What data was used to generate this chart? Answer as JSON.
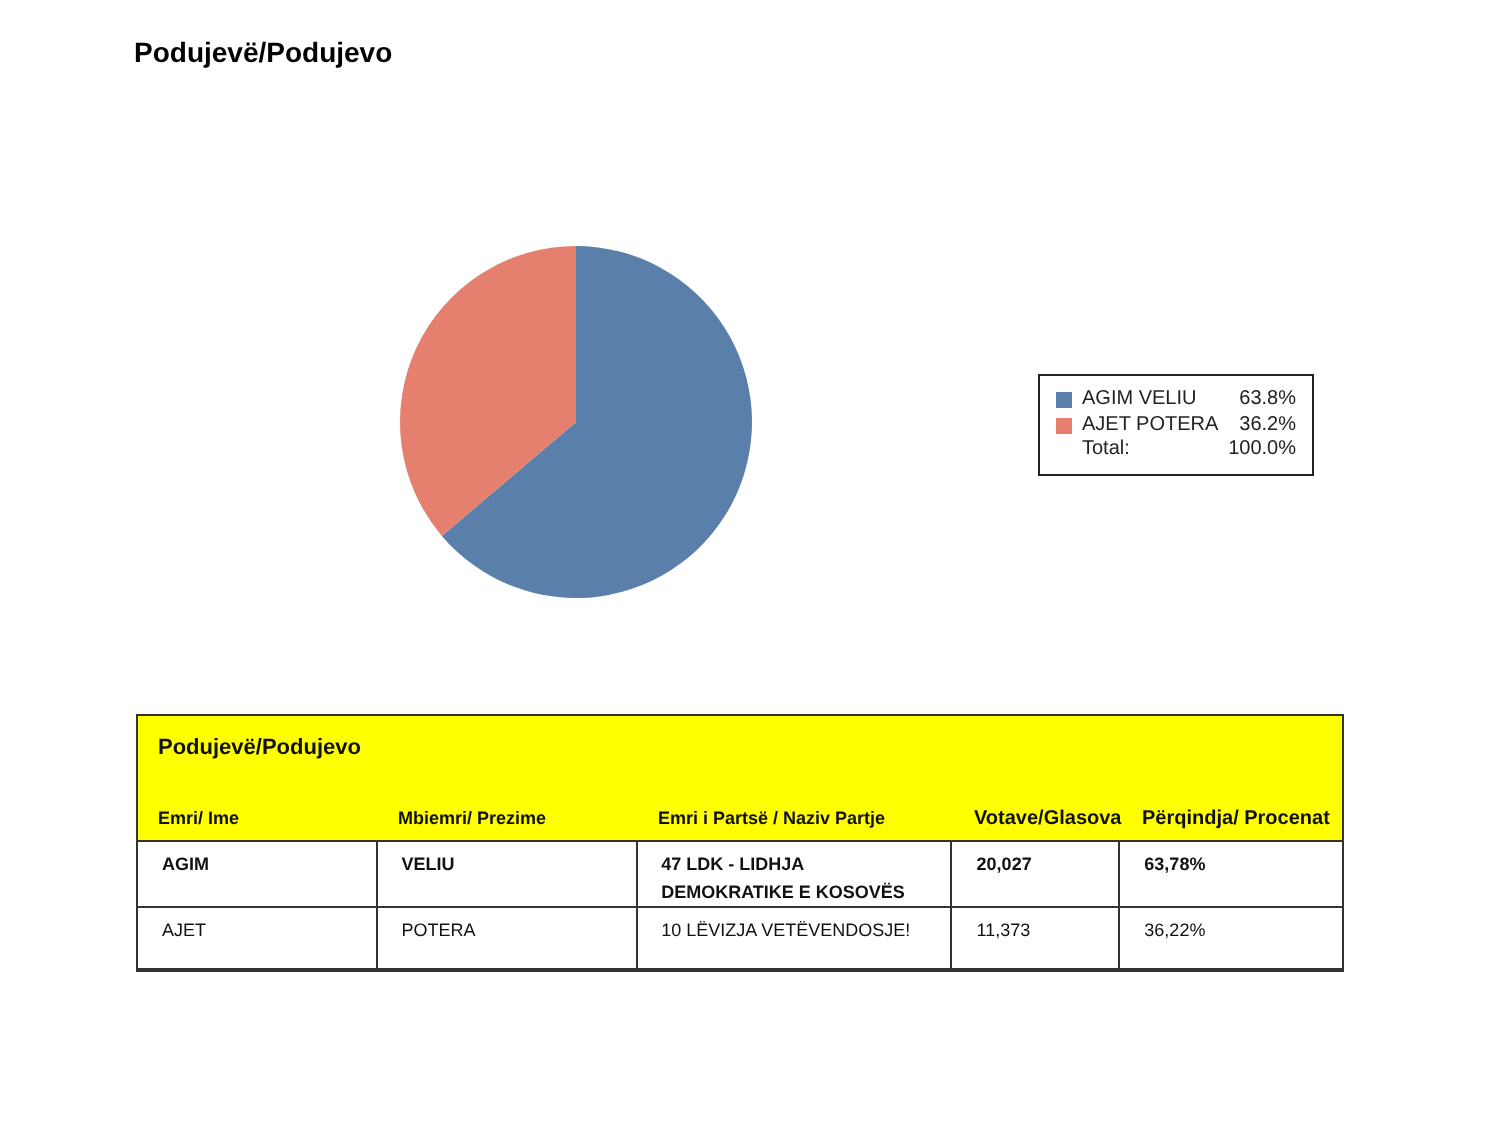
{
  "chart_data": {
    "type": "pie",
    "title": "Podujevë/Podujevo",
    "categories": [
      "AGIM VELIU",
      "AJET POTERA"
    ],
    "values": [
      63.8,
      36.2
    ],
    "colors": [
      "#5b7fab",
      "#e5806e"
    ],
    "value_labels": [
      "63.8%",
      "36.2%"
    ],
    "legend": "right",
    "annotations": [
      "Total:",
      "100.0%",
      "Podujevë/Podujevo",
      "Emri/ Ime",
      "Mbiemri/ Prezime",
      "Emri i Partsë / Naziv Partje",
      "Votave/Glasova",
      "Përqindja/ Procenat",
      "AGIM",
      "VELIU",
      "47 LDK - LIDHJA DEMOKRATIKE E KOSOVËS",
      "20,027",
      "63,78%",
      "AJET",
      "POTERA",
      "10 LËVIZJA VETËVENDOSJE!",
      "11,373",
      "36,22%"
    ]
  }
}
